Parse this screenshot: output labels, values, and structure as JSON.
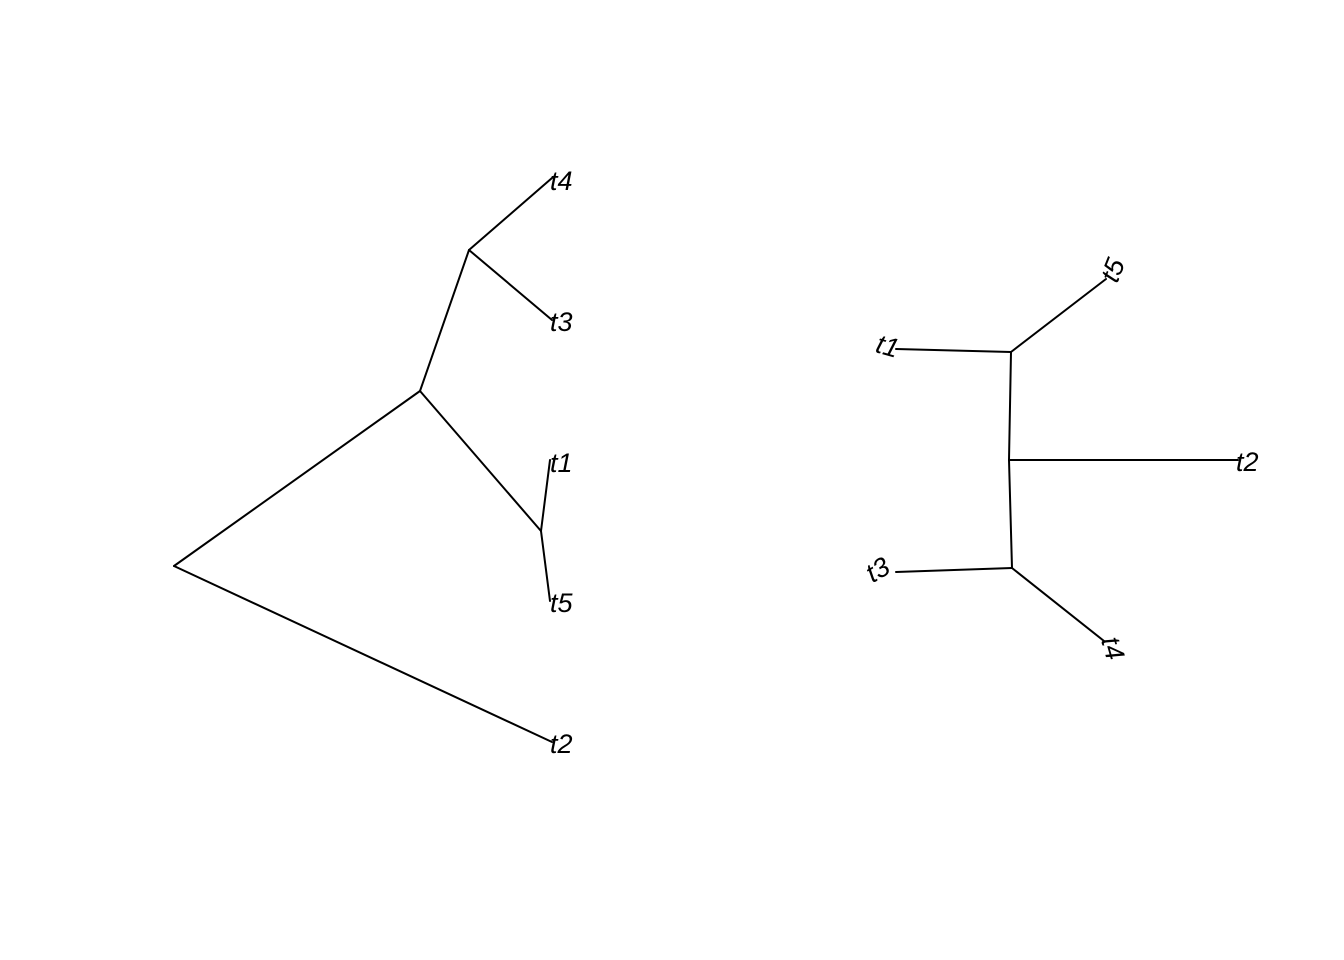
{
  "trees": [
    {
      "type": "cladogram",
      "tips": [
        {
          "id": "t4",
          "label": "t4"
        },
        {
          "id": "t3",
          "label": "t3"
        },
        {
          "id": "t1",
          "label": "t1"
        },
        {
          "id": "t5",
          "label": "t5"
        },
        {
          "id": "t2",
          "label": "t2"
        }
      ]
    },
    {
      "type": "unrooted",
      "tips": [
        {
          "id": "t5",
          "label": "t5"
        },
        {
          "id": "t1",
          "label": "t1"
        },
        {
          "id": "t2",
          "label": "t2"
        },
        {
          "id": "t3",
          "label": "t3"
        },
        {
          "id": "t4",
          "label": "t4"
        }
      ]
    }
  ],
  "colors": {
    "background": "#ffffff",
    "branch": "#000000",
    "label": "#000000"
  }
}
